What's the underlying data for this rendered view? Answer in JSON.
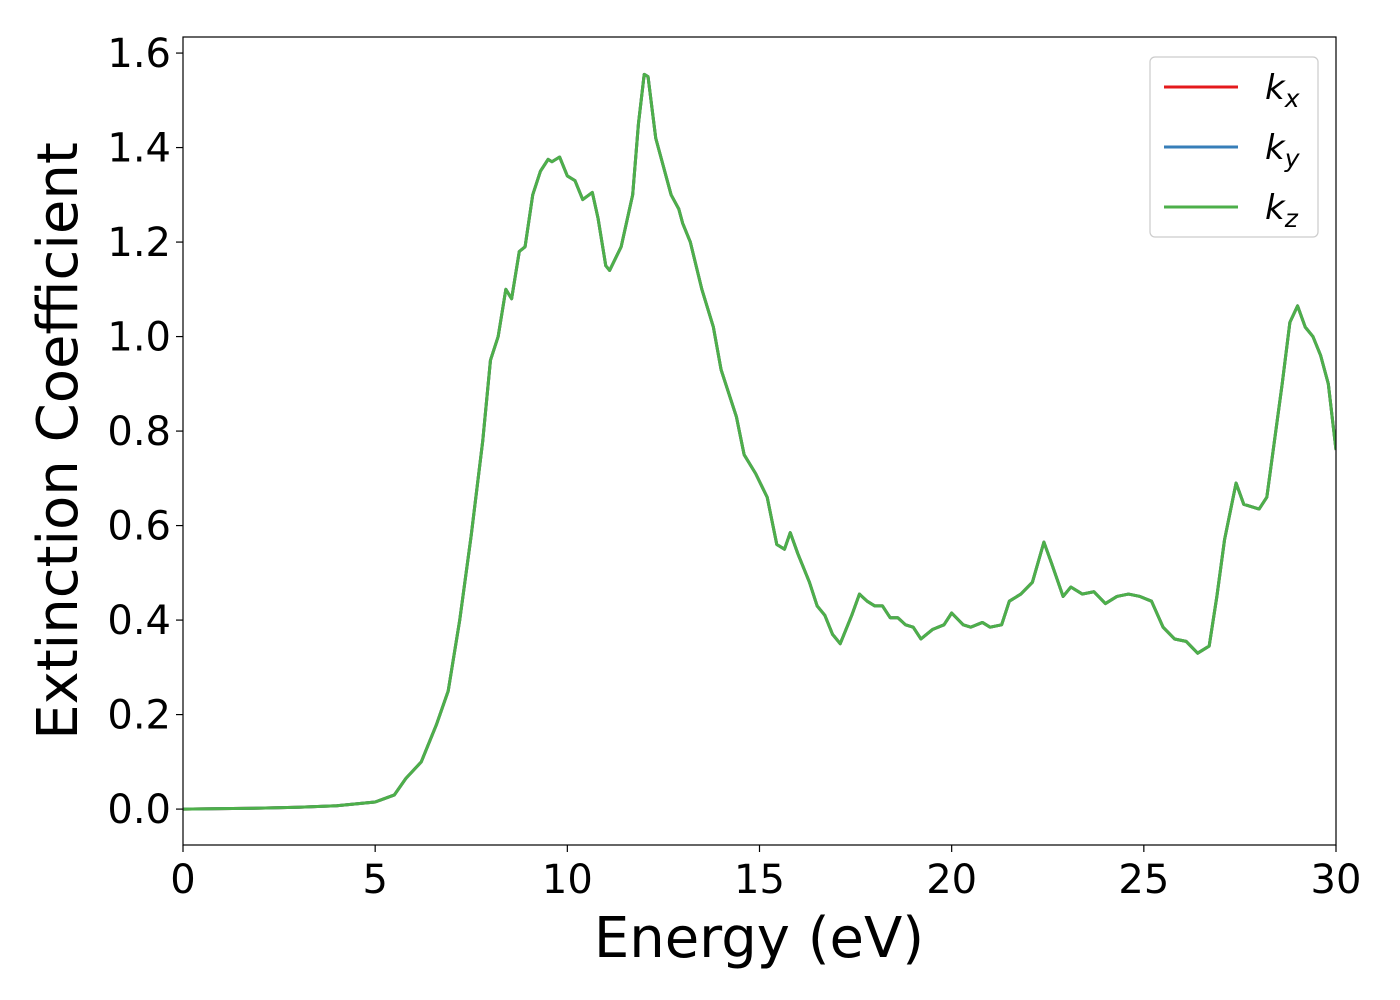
{
  "chart_data": {
    "type": "line",
    "xlabel": "Energy (eV)",
    "ylabel": "Extinction Coefficient",
    "x": [
      0,
      1,
      2,
      3,
      4,
      5,
      5.5,
      5.8,
      6.2,
      6.6,
      6.9,
      7.2,
      7.5,
      7.8,
      8.0,
      8.2,
      8.4,
      8.55,
      8.75,
      8.9,
      9.1,
      9.3,
      9.5,
      9.6,
      9.8,
      10.0,
      10.2,
      10.4,
      10.65,
      10.8,
      11.0,
      11.1,
      11.4,
      11.7,
      11.85,
      12.0,
      12.1,
      12.3,
      12.5,
      12.7,
      12.9,
      13.0,
      13.2,
      13.5,
      13.8,
      14.0,
      14.4,
      14.6,
      14.9,
      15.2,
      15.45,
      15.65,
      15.8,
      16.0,
      16.3,
      16.5,
      16.7,
      16.9,
      17.1,
      17.4,
      17.6,
      17.8,
      18.0,
      18.2,
      18.4,
      18.6,
      18.8,
      19.0,
      19.2,
      19.5,
      19.8,
      20.0,
      20.3,
      20.5,
      20.8,
      21.0,
      21.3,
      21.5,
      21.8,
      22.1,
      22.4,
      22.6,
      22.9,
      23.1,
      23.4,
      23.7,
      24.0,
      24.3,
      24.6,
      24.9,
      25.2,
      25.5,
      25.8,
      26.1,
      26.4,
      26.7,
      26.9,
      27.1,
      27.4,
      27.6,
      28.0,
      28.2,
      28.6,
      28.8,
      29.0,
      29.2,
      29.4,
      29.6,
      29.8,
      30.0
    ],
    "series": [
      {
        "name": "k_x",
        "color": "#e41a1c",
        "values": [
          0,
          0.001,
          0.002,
          0.004,
          0.007,
          0.015,
          0.03,
          0.065,
          0.1,
          0.18,
          0.25,
          0.4,
          0.58,
          0.78,
          0.95,
          1.0,
          1.1,
          1.08,
          1.18,
          1.19,
          1.3,
          1.35,
          1.375,
          1.37,
          1.38,
          1.34,
          1.33,
          1.29,
          1.305,
          1.25,
          1.15,
          1.14,
          1.19,
          1.3,
          1.45,
          1.555,
          1.55,
          1.42,
          1.36,
          1.3,
          1.27,
          1.24,
          1.2,
          1.1,
          1.02,
          0.93,
          0.83,
          0.75,
          0.71,
          0.66,
          0.56,
          0.55,
          0.585,
          0.54,
          0.48,
          0.43,
          0.41,
          0.37,
          0.35,
          0.41,
          0.455,
          0.44,
          0.43,
          0.43,
          0.405,
          0.405,
          0.39,
          0.385,
          0.36,
          0.38,
          0.39,
          0.415,
          0.39,
          0.385,
          0.395,
          0.385,
          0.39,
          0.44,
          0.455,
          0.48,
          0.565,
          0.52,
          0.45,
          0.47,
          0.455,
          0.46,
          0.435,
          0.45,
          0.455,
          0.45,
          0.44,
          0.385,
          0.36,
          0.355,
          0.33,
          0.345,
          0.45,
          0.57,
          0.69,
          0.645,
          0.635,
          0.66,
          0.9,
          1.03,
          1.065,
          1.02,
          1.0,
          0.96,
          0.9,
          0.76
        ]
      },
      {
        "name": "k_y",
        "color": "#377eb8",
        "values": [
          0,
          0.001,
          0.002,
          0.004,
          0.007,
          0.015,
          0.03,
          0.065,
          0.1,
          0.18,
          0.25,
          0.4,
          0.58,
          0.78,
          0.95,
          1.0,
          1.1,
          1.08,
          1.18,
          1.19,
          1.3,
          1.35,
          1.375,
          1.37,
          1.38,
          1.34,
          1.33,
          1.29,
          1.305,
          1.25,
          1.15,
          1.14,
          1.19,
          1.3,
          1.45,
          1.555,
          1.55,
          1.42,
          1.36,
          1.3,
          1.27,
          1.24,
          1.2,
          1.1,
          1.02,
          0.93,
          0.83,
          0.75,
          0.71,
          0.66,
          0.56,
          0.55,
          0.585,
          0.54,
          0.48,
          0.43,
          0.41,
          0.37,
          0.35,
          0.41,
          0.455,
          0.44,
          0.43,
          0.43,
          0.405,
          0.405,
          0.39,
          0.385,
          0.36,
          0.38,
          0.39,
          0.415,
          0.39,
          0.385,
          0.395,
          0.385,
          0.39,
          0.44,
          0.455,
          0.48,
          0.565,
          0.52,
          0.45,
          0.47,
          0.455,
          0.46,
          0.435,
          0.45,
          0.455,
          0.45,
          0.44,
          0.385,
          0.36,
          0.355,
          0.33,
          0.345,
          0.45,
          0.57,
          0.69,
          0.645,
          0.635,
          0.66,
          0.9,
          1.03,
          1.065,
          1.02,
          1.0,
          0.96,
          0.9,
          0.76
        ]
      },
      {
        "name": "k_z",
        "color": "#4daf4a",
        "values": [
          0,
          0.001,
          0.002,
          0.004,
          0.007,
          0.015,
          0.03,
          0.065,
          0.1,
          0.18,
          0.25,
          0.4,
          0.58,
          0.78,
          0.95,
          1.0,
          1.1,
          1.08,
          1.18,
          1.19,
          1.3,
          1.35,
          1.375,
          1.37,
          1.38,
          1.34,
          1.33,
          1.29,
          1.305,
          1.25,
          1.15,
          1.14,
          1.19,
          1.3,
          1.45,
          1.555,
          1.55,
          1.42,
          1.36,
          1.3,
          1.27,
          1.24,
          1.2,
          1.1,
          1.02,
          0.93,
          0.83,
          0.75,
          0.71,
          0.66,
          0.56,
          0.55,
          0.585,
          0.54,
          0.48,
          0.43,
          0.41,
          0.37,
          0.35,
          0.41,
          0.455,
          0.44,
          0.43,
          0.43,
          0.405,
          0.405,
          0.39,
          0.385,
          0.36,
          0.38,
          0.39,
          0.415,
          0.39,
          0.385,
          0.395,
          0.385,
          0.39,
          0.44,
          0.455,
          0.48,
          0.565,
          0.52,
          0.45,
          0.47,
          0.455,
          0.46,
          0.435,
          0.45,
          0.455,
          0.45,
          0.44,
          0.385,
          0.36,
          0.355,
          0.33,
          0.345,
          0.45,
          0.57,
          0.69,
          0.645,
          0.635,
          0.66,
          0.9,
          1.03,
          1.065,
          1.02,
          1.0,
          0.96,
          0.9,
          0.76
        ]
      }
    ],
    "xlim": [
      0,
      30
    ],
    "xticks": [
      0,
      5,
      10,
      15,
      20,
      25,
      30
    ],
    "ylim": [
      -0.076,
      1.634
    ],
    "yticks": [
      {
        "value": 0,
        "label": "0.0"
      },
      0.2,
      0.4,
      0.6,
      0.8,
      {
        "value": 1,
        "label": "1.0"
      },
      1.2,
      1.4,
      1.6
    ],
    "legend": "upper right",
    "grid": false
  }
}
